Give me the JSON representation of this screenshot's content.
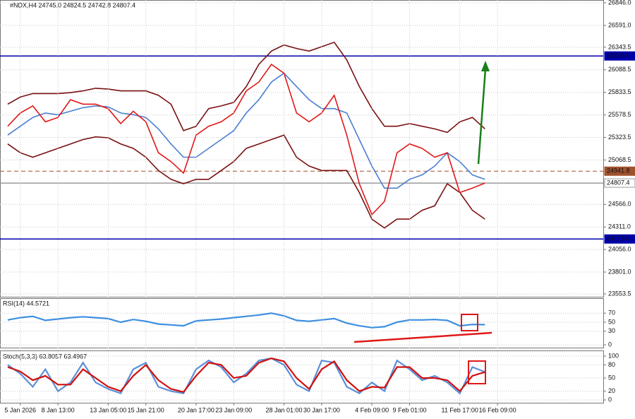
{
  "chart_data": [
    {
      "type": "line",
      "title": "#NDX,H4  24745.0  24824.5  24742.8  24807.4",
      "ylim": [
        23521.5,
        26878
      ],
      "yticks": [
        {
          "value": 26846,
          "label": "26846.0"
        },
        {
          "value": 26591,
          "label": "26591.0"
        },
        {
          "value": 26343.5,
          "label": "26343.5"
        },
        {
          "value": 26088.5,
          "label": "26088.5"
        },
        {
          "value": 25833.5,
          "label": "25833.5"
        },
        {
          "value": 25578.5,
          "label": "25578.5"
        },
        {
          "value": 25323.5,
          "label": "25323.5"
        },
        {
          "value": 25068.5,
          "label": "25068.5"
        },
        {
          "value": 24566,
          "label": "24566.0"
        },
        {
          "value": 24311,
          "label": "24311.0"
        },
        {
          "value": 24056,
          "label": "24056.0"
        },
        {
          "value": 23801,
          "label": "23801.0"
        },
        {
          "value": 23553.5,
          "label": "23553.5"
        }
      ],
      "grid": true,
      "hlines": [
        {
          "value": 26245,
          "label": "26245.0",
          "color": "#0000aa"
        },
        {
          "value": 24175,
          "label": "24175.0",
          "color": "#0000aa"
        },
        {
          "value": 24941.8,
          "color": "#a0522d",
          "dashed": true
        },
        {
          "value": 24807.4,
          "color": "#9a9a9a"
        }
      ],
      "series": [
        {
          "color": "#7a1010",
          "values": [
            25700,
            25780,
            25820,
            25820,
            25820,
            25830,
            25850,
            25880,
            25870,
            25850,
            25850,
            25850,
            25800,
            25700,
            25400,
            25450,
            25650,
            25680,
            25720,
            25900,
            26150,
            26300,
            26370,
            26330,
            26300,
            26350,
            26400,
            26200,
            25900,
            25650,
            25450,
            25450,
            25480,
            25450,
            25420,
            25380,
            25500,
            25550,
            25420,
            null
          ]
        },
        {
          "color": "#7a1010",
          "values": [
            25250,
            25150,
            25100,
            25150,
            25200,
            25250,
            25300,
            25330,
            25320,
            25250,
            25200,
            25100,
            24950,
            24850,
            24800,
            24850,
            24850,
            24950,
            25050,
            25200,
            25250,
            25300,
            25350,
            25100,
            25000,
            24950,
            24950,
            24950,
            24700,
            24400,
            24300,
            24400,
            24400,
            24500,
            24550,
            24800,
            24700,
            24500,
            24400,
            null
          ]
        },
        {
          "color": "#4a7fd0",
          "values": [
            25350,
            25450,
            25550,
            25600,
            25580,
            25620,
            25660,
            25680,
            25670,
            25600,
            25580,
            25550,
            25420,
            25250,
            25100,
            25100,
            25200,
            25300,
            25400,
            25600,
            25750,
            25950,
            26050,
            25900,
            25750,
            25650,
            25650,
            25600,
            25300,
            25000,
            24750,
            24750,
            24850,
            24900,
            25000,
            25150,
            25050,
            24900,
            24850,
            null
          ]
        },
        {
          "color": "#e01818",
          "values": [
            25450,
            25600,
            25680,
            25500,
            25550,
            25750,
            25700,
            25700,
            25650,
            25480,
            25620,
            25500,
            25150,
            25050,
            24920,
            25350,
            25450,
            25500,
            25600,
            25850,
            25950,
            26150,
            26050,
            25600,
            25500,
            25600,
            25800,
            25350,
            24800,
            24450,
            24600,
            25150,
            25250,
            25200,
            25100,
            25150,
            24700,
            24750,
            24807.4,
            null
          ]
        }
      ]
    },
    {
      "type": "line",
      "title": "RSI(14) 44.5721",
      "ylim": [
        0,
        100
      ],
      "yticks": [
        0,
        30,
        50,
        70
      ],
      "grid": true,
      "series": [
        {
          "color": "#3d8fe0",
          "values": [
            55,
            60,
            63,
            54,
            57,
            60,
            62,
            60,
            58,
            50,
            56,
            52,
            46,
            44,
            42,
            53,
            55,
            57,
            60,
            63,
            66,
            70,
            64,
            54,
            52,
            55,
            58,
            48,
            42,
            38,
            40,
            50,
            55,
            55,
            56,
            54,
            42,
            45,
            44.5721,
            null
          ]
        }
      ]
    },
    {
      "type": "line",
      "title": "Stoch(5,3,3) 63.8057 63.4967",
      "ylim": [
        0,
        100
      ],
      "yticks": [
        0,
        20,
        50,
        80,
        100
      ],
      "grid": true,
      "categories": [
        null,
        "5 Jan 2026",
        null,
        null,
        "8 Jan 13:00",
        null,
        null,
        null,
        "13 Jan 05:00",
        null,
        null,
        "15 Jan 21:00",
        null,
        null,
        null,
        "20 Jan 17:00",
        null,
        null,
        "23 Jan 09:00",
        null,
        null,
        null,
        "28 Jan 01:00",
        null,
        null,
        "30 Jan 17:00",
        null,
        null,
        null,
        "4 Feb 09:00",
        null,
        null,
        "9 Feb 01:00",
        null,
        null,
        null,
        "11 Feb 17:00",
        null,
        null,
        "16 Feb 09:00"
      ],
      "series": [
        {
          "color": "#5b8fd8",
          "values": [
            80,
            60,
            30,
            70,
            20,
            40,
            85,
            40,
            25,
            15,
            70,
            85,
            30,
            20,
            15,
            70,
            90,
            75,
            40,
            60,
            90,
            95,
            80,
            35,
            20,
            90,
            85,
            30,
            15,
            40,
            20,
            90,
            70,
            45,
            55,
            40,
            15,
            75,
            63.8057,
            null
          ]
        },
        {
          "color": "#d01010",
          "values": [
            75,
            65,
            45,
            55,
            35,
            35,
            70,
            50,
            30,
            20,
            55,
            80,
            45,
            25,
            18,
            55,
            85,
            80,
            50,
            55,
            85,
            95,
            88,
            50,
            25,
            70,
            88,
            45,
            20,
            30,
            28,
            75,
            75,
            50,
            50,
            45,
            20,
            55,
            63.4967,
            null
          ]
        }
      ]
    }
  ]
}
